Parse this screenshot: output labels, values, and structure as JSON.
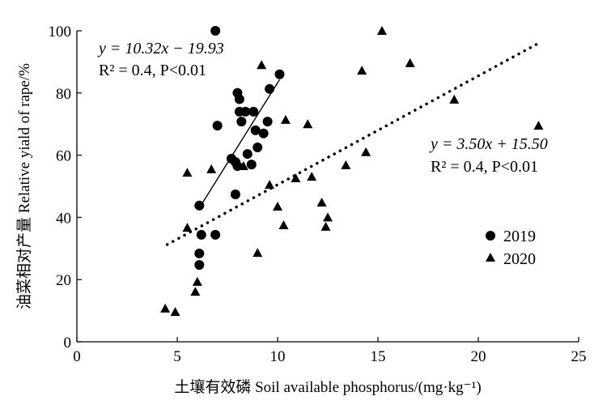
{
  "chart_data": {
    "type": "scatter",
    "xlabel": "土壤有效磷 Soil available phosphorus/(mg·kg⁻¹)",
    "ylabel": "油菜相对产量 Relative yiald of rape/%",
    "xlim": [
      0,
      25
    ],
    "ylim": [
      0,
      100
    ],
    "xticks": [
      0,
      5,
      10,
      15,
      20,
      25
    ],
    "yticks": [
      0,
      20,
      40,
      60,
      80,
      100
    ],
    "grid": false,
    "legend_placement": "right",
    "series": [
      {
        "name": "2019",
        "marker": "circle",
        "points": [
          [
            6.9,
            100
          ],
          [
            10.1,
            86
          ],
          [
            9.6,
            81.3
          ],
          [
            8.0,
            80
          ],
          [
            8.1,
            78
          ],
          [
            8.1,
            74
          ],
          [
            8.4,
            74
          ],
          [
            8.8,
            74
          ],
          [
            8.2,
            70.8
          ],
          [
            9.5,
            70.8
          ],
          [
            7.0,
            69.5
          ],
          [
            8.9,
            68
          ],
          [
            9.3,
            67
          ],
          [
            9.0,
            62.5
          ],
          [
            8.5,
            60.4
          ],
          [
            7.7,
            58.9
          ],
          [
            7.9,
            57.8
          ],
          [
            8.7,
            57
          ],
          [
            8.0,
            56.5
          ],
          [
            7.9,
            47.4
          ],
          [
            6.1,
            43.8
          ],
          [
            6.2,
            34.4
          ],
          [
            6.9,
            34.4
          ],
          [
            6.1,
            28.4
          ],
          [
            6.1,
            24.7
          ]
        ],
        "fit": {
          "slope": 10.32,
          "intercept": -19.93,
          "x_range": [
            6.1,
            10.1
          ],
          "style": "solid"
        },
        "equation": "y = 10.32x − 19.93",
        "stats": "R² = 0.4, P<0.01"
      },
      {
        "name": "2020",
        "marker": "triangle",
        "points": [
          [
            15.2,
            100
          ],
          [
            14.2,
            87.2
          ],
          [
            16.6,
            89.6
          ],
          [
            9.2,
            89
          ],
          [
            10.4,
            71.4
          ],
          [
            11.5,
            70
          ],
          [
            18.8,
            77.9
          ],
          [
            23.0,
            69.5
          ],
          [
            14.4,
            61
          ],
          [
            13.4,
            56.8
          ],
          [
            8.3,
            56.5
          ],
          [
            5.5,
            54.4
          ],
          [
            6.7,
            55.5
          ],
          [
            9.6,
            50.5
          ],
          [
            10.9,
            52.6
          ],
          [
            11.7,
            53.1
          ],
          [
            12.2,
            44.8
          ],
          [
            12.5,
            40
          ],
          [
            12.4,
            37
          ],
          [
            10.0,
            43.5
          ],
          [
            10.3,
            37.5
          ],
          [
            5.5,
            36.7
          ],
          [
            9.0,
            28.6
          ],
          [
            6.0,
            19.3
          ],
          [
            5.9,
            16.1
          ],
          [
            4.4,
            10.7
          ],
          [
            4.9,
            9.6
          ]
        ],
        "fit": {
          "slope": 3.5,
          "intercept": 15.5,
          "x_range": [
            4.5,
            22.9
          ],
          "style": "dotted"
        },
        "equation": "y = 3.50x + 15.50",
        "stats": "R² = 0.4, P<0.01"
      }
    ]
  }
}
